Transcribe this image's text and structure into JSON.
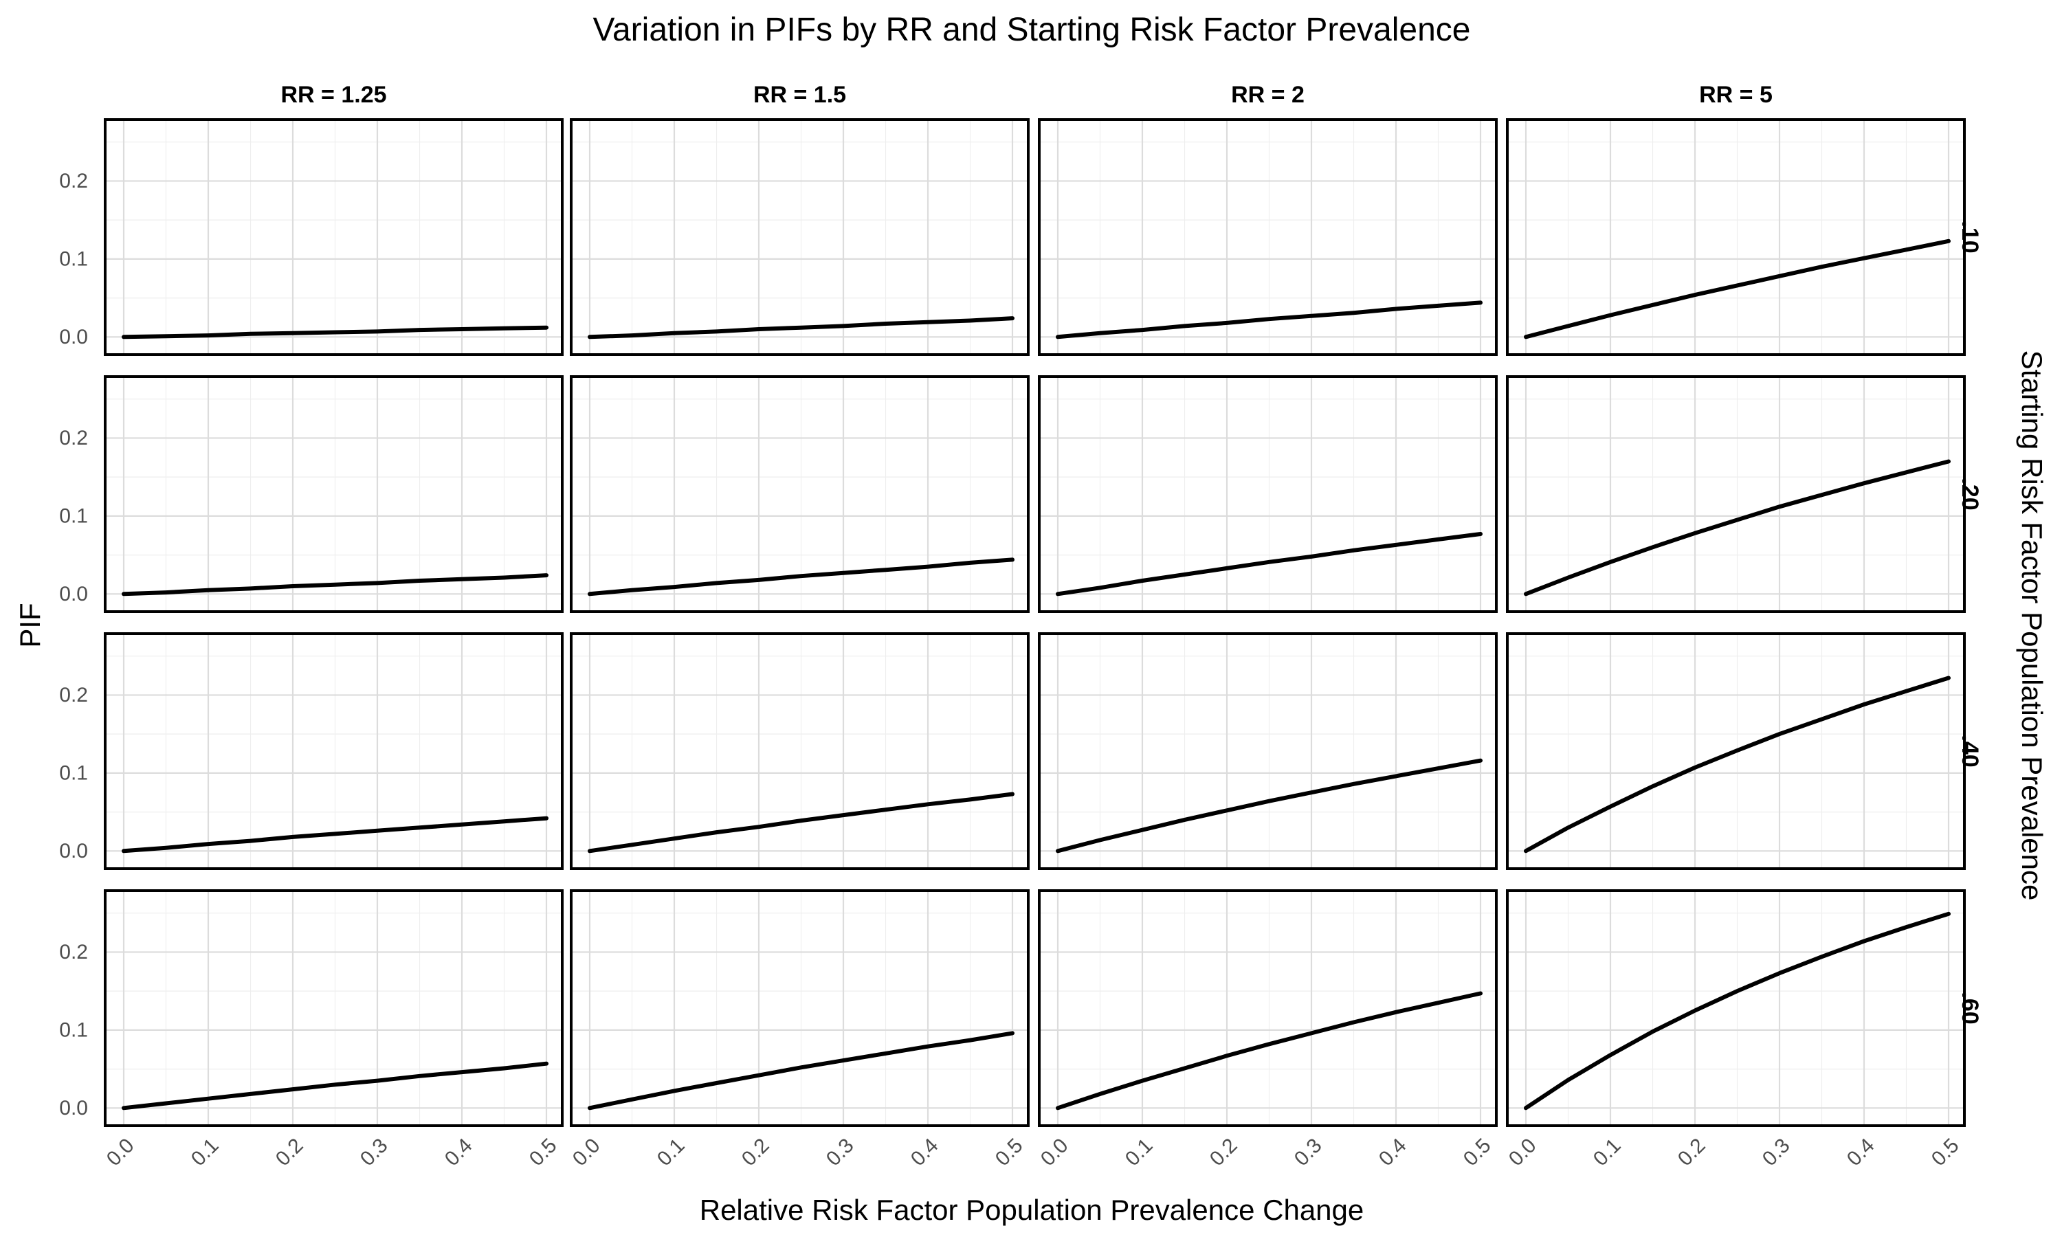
{
  "chart_data": {
    "type": "line",
    "facet": "grid",
    "title": "Variation in PIFs by RR and Starting Risk Factor Prevalence",
    "xlabel": "Relative Risk Factor Population Prevalence Change",
    "ylabel": "PIF",
    "row_strip_title": "Starting Risk Factor Population Prevalence",
    "columns": [
      {
        "label": "RR = 1.25",
        "rr": 1.25
      },
      {
        "label": "RR = 1.5",
        "rr": 1.5
      },
      {
        "label": "RR = 2",
        "rr": 2
      },
      {
        "label": "RR = 5",
        "rr": 5
      }
    ],
    "rows": [
      {
        "label": ".10",
        "prevalence": 0.1
      },
      {
        "label": ".20",
        "prevalence": 0.2
      },
      {
        "label": ".40",
        "prevalence": 0.4
      },
      {
        "label": ".60",
        "prevalence": 0.6
      }
    ],
    "x": [
      0.0,
      0.05,
      0.1,
      0.15,
      0.2,
      0.25,
      0.3,
      0.35,
      0.4,
      0.45,
      0.5
    ],
    "xlim": [
      0.0,
      0.5
    ],
    "ylim": [
      -0.005,
      0.27
    ],
    "x_ticks": [
      0.0,
      0.1,
      0.2,
      0.3,
      0.4,
      0.5
    ],
    "x_tick_labels": [
      "0.0",
      "0.1",
      "0.2",
      "0.3",
      "0.4",
      "0.5"
    ],
    "y_ticks": [
      0.0,
      0.1,
      0.2
    ],
    "y_tick_labels": [
      "0.0",
      "0.1",
      "0.2"
    ],
    "grid": true,
    "legend": "none",
    "series": [
      {
        "row": 0,
        "col": 0,
        "values": [
          0.0,
          0.001,
          0.002,
          0.004,
          0.005,
          0.006,
          0.007,
          0.009,
          0.01,
          0.011,
          0.012
        ]
      },
      {
        "row": 0,
        "col": 1,
        "values": [
          0.0,
          0.002,
          0.005,
          0.007,
          0.01,
          0.012,
          0.014,
          0.017,
          0.019,
          0.021,
          0.024
        ]
      },
      {
        "row": 0,
        "col": 2,
        "values": [
          0.0,
          0.005,
          0.009,
          0.014,
          0.018,
          0.023,
          0.027,
          0.031,
          0.036,
          0.04,
          0.044
        ]
      },
      {
        "row": 0,
        "col": 3,
        "values": [
          0.0,
          0.014,
          0.028,
          0.041,
          0.054,
          0.066,
          0.078,
          0.09,
          0.101,
          0.112,
          0.123
        ]
      },
      {
        "row": 1,
        "col": 0,
        "values": [
          0.0,
          0.002,
          0.005,
          0.007,
          0.01,
          0.012,
          0.014,
          0.017,
          0.019,
          0.021,
          0.024
        ]
      },
      {
        "row": 1,
        "col": 1,
        "values": [
          0.0,
          0.005,
          0.009,
          0.014,
          0.018,
          0.023,
          0.027,
          0.031,
          0.035,
          0.04,
          0.044
        ]
      },
      {
        "row": 1,
        "col": 2,
        "values": [
          0.0,
          0.008,
          0.017,
          0.025,
          0.033,
          0.041,
          0.048,
          0.056,
          0.063,
          0.07,
          0.077
        ]
      },
      {
        "row": 1,
        "col": 3,
        "values": [
          0.0,
          0.021,
          0.041,
          0.06,
          0.078,
          0.095,
          0.112,
          0.127,
          0.142,
          0.156,
          0.17
        ]
      },
      {
        "row": 2,
        "col": 0,
        "values": [
          0.0,
          0.004,
          0.009,
          0.013,
          0.018,
          0.022,
          0.026,
          0.03,
          0.034,
          0.038,
          0.042
        ]
      },
      {
        "row": 2,
        "col": 1,
        "values": [
          0.0,
          0.008,
          0.016,
          0.024,
          0.031,
          0.039,
          0.046,
          0.053,
          0.06,
          0.066,
          0.073
        ]
      },
      {
        "row": 2,
        "col": 2,
        "values": [
          0.0,
          0.014,
          0.027,
          0.04,
          0.052,
          0.064,
          0.075,
          0.086,
          0.096,
          0.106,
          0.116
        ]
      },
      {
        "row": 2,
        "col": 3,
        "values": [
          0.0,
          0.03,
          0.057,
          0.083,
          0.107,
          0.129,
          0.15,
          0.169,
          0.188,
          0.205,
          0.222
        ]
      },
      {
        "row": 3,
        "col": 0,
        "values": [
          0.0,
          0.006,
          0.012,
          0.018,
          0.024,
          0.03,
          0.035,
          0.041,
          0.046,
          0.051,
          0.057
        ]
      },
      {
        "row": 3,
        "col": 1,
        "values": [
          0.0,
          0.011,
          0.022,
          0.032,
          0.042,
          0.052,
          0.061,
          0.07,
          0.079,
          0.087,
          0.096
        ]
      },
      {
        "row": 3,
        "col": 2,
        "values": [
          0.0,
          0.018,
          0.035,
          0.051,
          0.067,
          0.082,
          0.096,
          0.11,
          0.123,
          0.135,
          0.147
        ]
      },
      {
        "row": 3,
        "col": 3,
        "values": [
          0.0,
          0.036,
          0.068,
          0.098,
          0.125,
          0.15,
          0.173,
          0.194,
          0.214,
          0.232,
          0.249
        ]
      }
    ]
  }
}
